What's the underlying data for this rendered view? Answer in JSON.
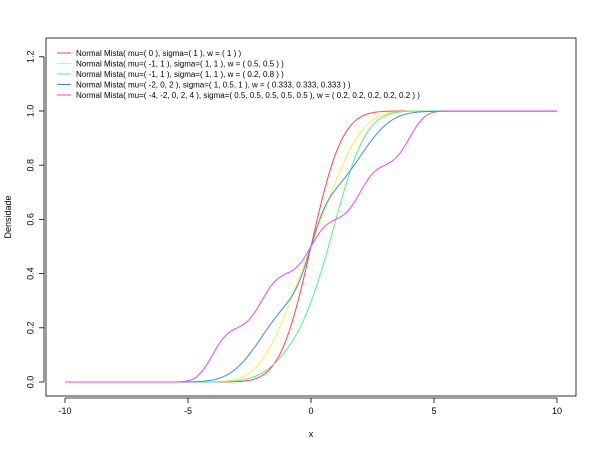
{
  "chart_data": {
    "type": "line",
    "title": "",
    "xlabel": "x",
    "ylabel": "Densidade",
    "xlim": [
      -10,
      10
    ],
    "ylim": [
      0.0,
      1.2
    ],
    "xticks": [
      -10,
      -5,
      0,
      5,
      10
    ],
    "yticks": [
      0.0,
      0.2,
      0.4,
      0.6,
      0.8,
      1.0,
      1.2
    ],
    "xtick_labels": [
      "-10",
      "-5",
      "0",
      "5",
      "10"
    ],
    "ytick_labels": [
      "0.0",
      "0.2",
      "0.4",
      "0.6",
      "0.8",
      "1.0",
      "1.2"
    ],
    "grid": false,
    "legend_position": "top-left",
    "x_range": [
      -10,
      10
    ],
    "series": [
      {
        "name": "Normal Mista( mu=( 0 ), sigma=( 1 ), w = ( 1 ) )",
        "color": "#ff4444",
        "mu": [
          0
        ],
        "sigma": [
          1
        ],
        "w": [
          1
        ]
      },
      {
        "name": "Normal Mista( mu=( -1, 1 ), sigma=( 1, 1 ), w = ( 0.5, 0.5 ) )",
        "color": "#f2f245",
        "mu": [
          -1,
          1
        ],
        "sigma": [
          1,
          1
        ],
        "w": [
          0.5,
          0.5
        ]
      },
      {
        "name": "Normal Mista( mu=( -1, 1 ), sigma=( 1, 1 ), w = ( 0.2, 0.8 ) )",
        "color": "#55ee88",
        "mu": [
          -1,
          1
        ],
        "sigma": [
          1,
          1
        ],
        "w": [
          0.2,
          0.8
        ]
      },
      {
        "name": "Normal Mista( mu=( -2, 0, 2 ), sigma=( 1, 0.5, 1 ), w = ( 0.333, 0.333, 0.333 ) )",
        "color": "#4488ee",
        "mu": [
          -2,
          0,
          2
        ],
        "sigma": [
          1,
          0.5,
          1
        ],
        "w": [
          0.333,
          0.333,
          0.333
        ]
      },
      {
        "name": "Normal Mista( mu=( -4, -2, 0, 2, 4 ), sigma=( 0.5, 0.5, 0.5, 0.5, 0.5 ), w = ( 0.2, 0.2, 0.2, 0.2, 0.2 ) )",
        "color": "#ee44ee",
        "mu": [
          -4,
          -2,
          0,
          2,
          4
        ],
        "sigma": [
          0.5,
          0.5,
          0.5,
          0.5,
          0.5
        ],
        "w": [
          0.2,
          0.2,
          0.2,
          0.2,
          0.2
        ]
      }
    ]
  }
}
